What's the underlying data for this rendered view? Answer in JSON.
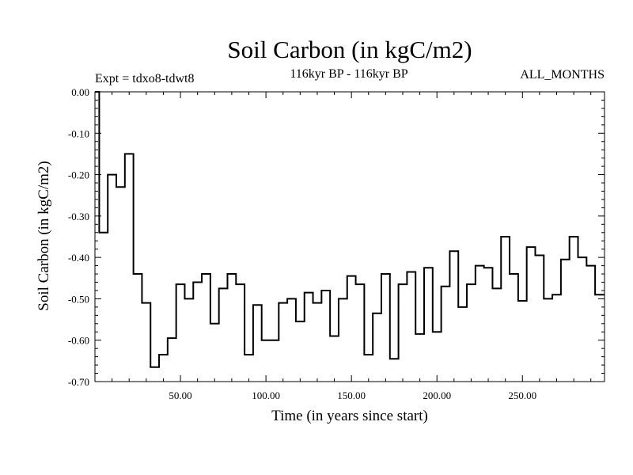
{
  "chart_data": {
    "type": "line",
    "step": true,
    "title": "Soil Carbon (in kgC/m2)",
    "subtitle_left": "Expt = tdxo8-tdwt8",
    "subtitle_center": "116kyr BP - 116kyr BP",
    "subtitle_right": "ALL_MONTHS",
    "xlabel": "Time (in years since start)",
    "ylabel": "Soil Carbon (in kgC/m2)",
    "xlim": [
      0,
      298
    ],
    "ylim": [
      -0.7,
      0.0
    ],
    "x_ticks": [
      50,
      100,
      150,
      200,
      250
    ],
    "x_tick_labels": [
      "50.00",
      "100.00",
      "150.00",
      "200.00",
      "250.00"
    ],
    "y_ticks": [
      0.0,
      -0.1,
      -0.2,
      -0.3,
      -0.4,
      -0.5,
      -0.6,
      -0.7
    ],
    "y_tick_labels": [
      "0.00",
      "-0.10",
      "-0.20",
      "-0.30",
      "-0.40",
      "-0.50",
      "-0.60",
      "-0.70"
    ],
    "grid": false,
    "line_color": "#000000",
    "series": [
      {
        "x": [
          0,
          2.5,
          7.5,
          12.5,
          17.5,
          22.5,
          27.5,
          32.5,
          37.5,
          42.5,
          47.5,
          52.5,
          57.5,
          62.5,
          67.5,
          72.5,
          77.5,
          82.5,
          87.5,
          92.5,
          97.5,
          102.5,
          107.5,
          112.5,
          117.5,
          122.5,
          127.5,
          132.5,
          137.5,
          142.5,
          147.5,
          152.5,
          157.5,
          162.5,
          167.5,
          172.5,
          177.5,
          182.5,
          187.5,
          192.5,
          197.5,
          202.5,
          207.5,
          212.5,
          217.5,
          222.5,
          227.5,
          232.5,
          237.5,
          242.5,
          247.5,
          252.5,
          257.5,
          262.5,
          267.5,
          272.5,
          277.5,
          282.5,
          287.5,
          292.5,
          297.5
        ],
        "values": [
          0.0,
          -0.34,
          -0.2,
          -0.23,
          -0.15,
          -0.44,
          -0.51,
          -0.665,
          -0.635,
          -0.595,
          -0.465,
          -0.5,
          -0.46,
          -0.44,
          -0.56,
          -0.475,
          -0.44,
          -0.465,
          -0.635,
          -0.515,
          -0.6,
          -0.6,
          -0.51,
          -0.5,
          -0.555,
          -0.485,
          -0.51,
          -0.48,
          -0.59,
          -0.5,
          -0.445,
          -0.465,
          -0.635,
          -0.535,
          -0.44,
          -0.645,
          -0.465,
          -0.435,
          -0.585,
          -0.425,
          -0.58,
          -0.47,
          -0.385,
          -0.52,
          -0.465,
          -0.42,
          -0.425,
          -0.475,
          -0.35,
          -0.44,
          -0.505,
          -0.375,
          -0.395,
          -0.5,
          -0.49,
          -0.405,
          -0.35,
          -0.4,
          -0.42,
          -0.49,
          -0.49
        ]
      }
    ]
  }
}
